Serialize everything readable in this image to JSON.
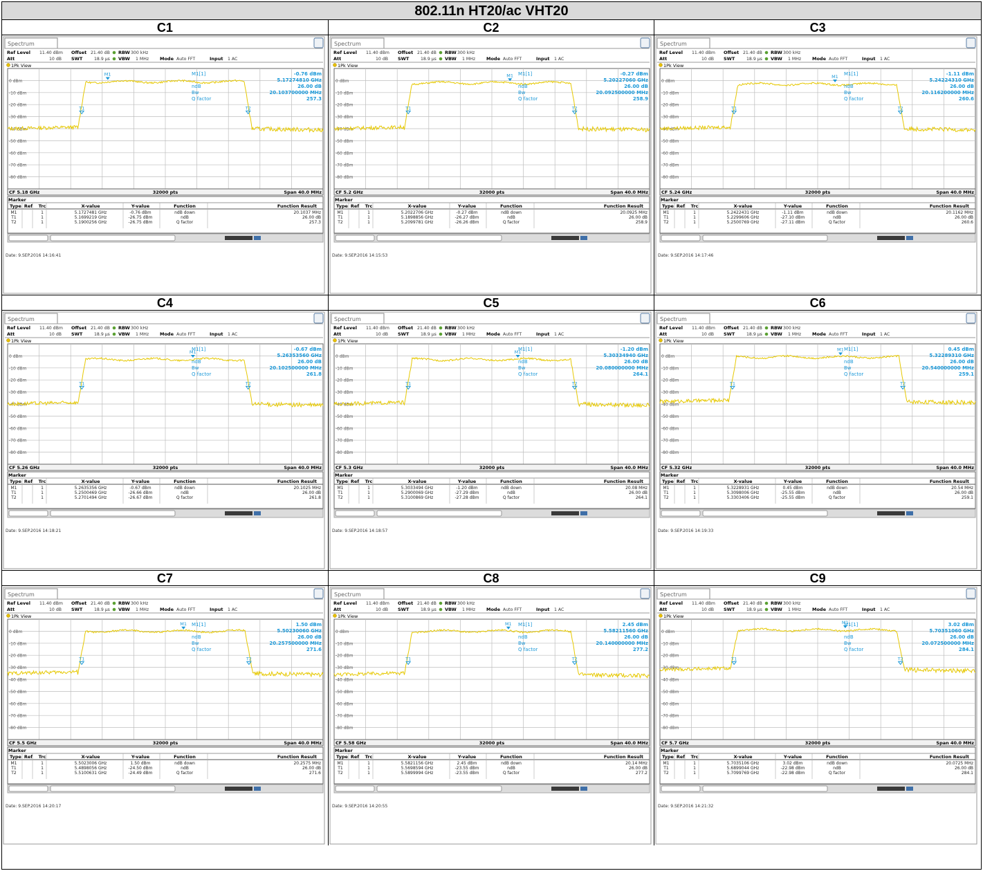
{
  "page_title": "802.11n HT20/ac VHT20",
  "colors": {
    "trace": "#e6c800",
    "marker": "#1a98d8",
    "grid": "#777777",
    "accent": "#5aa032"
  },
  "analyzer": {
    "tab_label": "Spectrum",
    "ref_level_label": "Ref Level",
    "ref_level": "11.40 dBm",
    "offset_label": "Offset",
    "offset": "21.40 dB",
    "rbw_label": "RBW",
    "rbw": "300 kHz",
    "att_label": "Att",
    "att": "10 dB",
    "swt_label": "SWT",
    "swt": "18.9 µs",
    "vbw_label": "VBW",
    "vbw": "1 MHz",
    "mode_label": "Mode",
    "mode": "Auto FFT",
    "input_label": "Input",
    "input": "1 AC",
    "view_label": "1Pk View",
    "pts": "32000 pts",
    "span": "Span 40.0 MHz",
    "marker_section": "Marker",
    "table_headers": [
      "Type",
      "Ref",
      "Trc",
      "X-value",
      "Y-value",
      "Function",
      "Function Result"
    ],
    "readout_labels": [
      "M1[1]",
      "ndB",
      "Bw",
      "Q factor"
    ],
    "y_tick_labels": [
      "0 dBm",
      "-10 dBm",
      "-20 dBm",
      "-30 dBm",
      "-40 dBm",
      "-50 dBm",
      "-60 dBm",
      "-70 dBm",
      "-80 dBm"
    ]
  },
  "chart_data": [
    {
      "name": "C1",
      "type": "line",
      "cf": "CF 5.18 GHz",
      "span_mhz": 40,
      "ylim": [
        -90,
        10
      ],
      "level": -1,
      "floor": -40,
      "edge_lo_mhz": -10.1,
      "edge_hi_mhz": 10.0,
      "m1_x_mhz": -7.3,
      "readout": [
        "-0.76 dBm",
        "5.17274810 GHz",
        "26.00 dB",
        "20.103700000 MHz",
        "257.3"
      ],
      "rows": [
        [
          "M1",
          "",
          "1",
          "5.1727481 GHz",
          "-0.76 dBm",
          "ndB down",
          "20.1037 MHz"
        ],
        [
          "T1",
          "",
          "1",
          "5.1699219 GHz",
          "-26.75 dBm",
          "ndB",
          "26.00 dB"
        ],
        [
          "T2",
          "",
          "1",
          "5.1900256 GHz",
          "-26.75 dBm",
          "Q factor",
          "257.3"
        ]
      ],
      "date": "Date: 9.SEP.2016  14:16:41"
    },
    {
      "name": "C2",
      "type": "line",
      "cf": "CF 5.2 GHz",
      "span_mhz": 40,
      "ylim": [
        -90,
        10
      ],
      "level": -2,
      "floor": -40,
      "edge_lo_mhz": -10.1,
      "edge_hi_mhz": 10.0,
      "m1_x_mhz": 2.3,
      "readout": [
        "-0.27 dBm",
        "5.20227060 GHz",
        "26.00 dB",
        "20.092500000 MHz",
        "258.9"
      ],
      "rows": [
        [
          "M1",
          "",
          "1",
          "5.2022706 GHz",
          "-0.27 dBm",
          "ndB down",
          "20.0925 MHz"
        ],
        [
          "T1",
          "",
          "1",
          "5.1898856 GHz",
          "-26.27 dBm",
          "ndB",
          "26.00 dB"
        ],
        [
          "T2",
          "",
          "1",
          "5.2099781 GHz",
          "-26.26 dBm",
          "Q factor",
          "258.9"
        ]
      ],
      "date": "Date: 9.SEP.2016  14:15:53"
    },
    {
      "name": "C3",
      "type": "line",
      "cf": "CF 5.24 GHz",
      "span_mhz": 40,
      "ylim": [
        -90,
        10
      ],
      "level": -3,
      "floor": -40,
      "edge_lo_mhz": -10.1,
      "edge_hi_mhz": 10.0,
      "m1_x_mhz": 2.2,
      "readout": [
        "-1.11 dBm",
        "5.24224310 GHz",
        "26.00 dB",
        "20.116200000 MHz",
        "260.6"
      ],
      "rows": [
        [
          "M1",
          "",
          "1",
          "5.2422431 GHz",
          "-1.11 dBm",
          "ndB down",
          "20.1162 MHz"
        ],
        [
          "T1",
          "",
          "1",
          "5.2299606 GHz",
          "-27.10 dBm",
          "ndB",
          "26.00 dB"
        ],
        [
          "T2",
          "",
          "1",
          "5.2500769 GHz",
          "-27.11 dBm",
          "Q factor",
          "260.6"
        ]
      ],
      "date": "Date: 9.SEP.2016  14:17:46"
    },
    {
      "name": "C4",
      "type": "line",
      "cf": "CF 5.26 GHz",
      "span_mhz": 40,
      "ylim": [
        -90,
        10
      ],
      "level": -3,
      "floor": -40,
      "edge_lo_mhz": -10.1,
      "edge_hi_mhz": 10.0,
      "m1_x_mhz": 3.5,
      "readout": [
        "-0.67 dBm",
        "5.26353560 GHz",
        "26.00 dB",
        "20.102500000 MHz",
        "261.8"
      ],
      "rows": [
        [
          "M1",
          "",
          "1",
          "5.2635356 GHz",
          "-0.67 dBm",
          "ndB down",
          "20.1025 MHz"
        ],
        [
          "T1",
          "",
          "1",
          "5.2500469 GHz",
          "-26.66 dBm",
          "ndB",
          "26.00 dB"
        ],
        [
          "T2",
          "",
          "1",
          "5.2701494 GHz",
          "-26.67 dBm",
          "Q factor",
          "261.8"
        ]
      ],
      "date": "Date: 9.SEP.2016  14:18:21"
    },
    {
      "name": "C5",
      "type": "line",
      "cf": "CF 5.3 GHz",
      "span_mhz": 40,
      "ylim": [
        -90,
        10
      ],
      "level": -3,
      "floor": -40,
      "edge_lo_mhz": -10.1,
      "edge_hi_mhz": 10.0,
      "m1_x_mhz": 3.3,
      "readout": [
        "-1.20 dBm",
        "5.30334940 GHz",
        "26.00 dB",
        "20.080000000 MHz",
        "264.1"
      ],
      "rows": [
        [
          "M1",
          "",
          "1",
          "5.3033494 GHz",
          "-1.20 dBm",
          "ndB down",
          "20.08 MHz"
        ],
        [
          "T1",
          "",
          "1",
          "5.2900069 GHz",
          "-27.29 dBm",
          "ndB",
          "26.00 dB"
        ],
        [
          "T2",
          "",
          "1",
          "5.3100869 GHz",
          "-27.28 dBm",
          "Q factor",
          "264.1"
        ]
      ],
      "date": "Date: 9.SEP.2016  14:18:57"
    },
    {
      "name": "C6",
      "type": "line",
      "cf": "CF 5.32 GHz",
      "span_mhz": 40,
      "ylim": [
        -90,
        10
      ],
      "level": -1,
      "floor": -38,
      "edge_lo_mhz": -10.3,
      "edge_hi_mhz": 10.3,
      "m1_x_mhz": 2.9,
      "readout": [
        "0.45 dBm",
        "5.32289310 GHz",
        "26.00 dB",
        "20.540000000 MHz",
        "259.1"
      ],
      "rows": [
        [
          "M1",
          "",
          "1",
          "5.3228931 GHz",
          "0.45 dBm",
          "ndB down",
          "20.54 MHz"
        ],
        [
          "T1",
          "",
          "1",
          "5.3098006 GHz",
          "-25.55 dBm",
          "ndB",
          "26.00 dB"
        ],
        [
          "T2",
          "",
          "1",
          "5.3303406 GHz",
          "-25.55 dBm",
          "Q factor",
          "259.1"
        ]
      ],
      "date": "Date: 9.SEP.2016  14:19:33"
    },
    {
      "name": "C7",
      "type": "line",
      "cf": "CF 5.5 GHz",
      "span_mhz": 40,
      "ylim": [
        -90,
        10
      ],
      "level": 0,
      "floor": -35,
      "edge_lo_mhz": -10.1,
      "edge_hi_mhz": 10.1,
      "m1_x_mhz": 2.3,
      "readout": [
        "1.50 dBm",
        "5.50230060 GHz",
        "26.00 dB",
        "20.257500000 MHz",
        "271.6"
      ],
      "rows": [
        [
          "M1",
          "",
          "1",
          "5.5023006 GHz",
          "1.50 dBm",
          "ndB down",
          "20.2575 MHz"
        ],
        [
          "T1",
          "",
          "1",
          "5.4898056 GHz",
          "-24.50 dBm",
          "ndB",
          "26.00 dB"
        ],
        [
          "T2",
          "",
          "1",
          "5.5100631 GHz",
          "-24.49 dBm",
          "Q factor",
          "271.6"
        ]
      ],
      "date": "Date: 9.SEP.2016  14:20:17"
    },
    {
      "name": "C8",
      "type": "line",
      "cf": "CF 5.58 GHz",
      "span_mhz": 40,
      "ylim": [
        -90,
        10
      ],
      "level": 0,
      "floor": -36,
      "edge_lo_mhz": -10.1,
      "edge_hi_mhz": 10.0,
      "m1_x_mhz": 2.1,
      "readout": [
        "2.45 dBm",
        "5.58211560 GHz",
        "26.00 dB",
        "20.140000000 MHz",
        "277.2"
      ],
      "rows": [
        [
          "M1",
          "",
          "1",
          "5.5821156 GHz",
          "2.45 dBm",
          "ndB down",
          "20.14 MHz"
        ],
        [
          "T1",
          "",
          "1",
          "5.5698594 GHz",
          "-23.55 dBm",
          "ndB",
          "26.00 dB"
        ],
        [
          "T2",
          "",
          "1",
          "5.5899994 GHz",
          "-23.55 dBm",
          "Q factor",
          "277.2"
        ]
      ],
      "date": "Date: 9.SEP.2016  14:20:55"
    },
    {
      "name": "C9",
      "type": "line",
      "cf": "CF 5.7 GHz",
      "span_mhz": 40,
      "ylim": [
        -90,
        10
      ],
      "level": 1,
      "floor": -32,
      "edge_lo_mhz": -10.1,
      "edge_hi_mhz": 10.0,
      "m1_x_mhz": 3.5,
      "readout": [
        "3.02 dBm",
        "5.70351060 GHz",
        "26.00 dB",
        "20.072500000 MHz",
        "284.1"
      ],
      "rows": [
        [
          "M1",
          "",
          "1",
          "5.7035106 GHz",
          "3.02 dBm",
          "ndB down",
          "20.0725 MHz"
        ],
        [
          "T1",
          "",
          "1",
          "5.6899044 GHz",
          "-22.98 dBm",
          "ndB",
          "26.00 dB"
        ],
        [
          "T2",
          "",
          "1",
          "5.7099769 GHz",
          "-22.98 dBm",
          "Q factor",
          "284.1"
        ]
      ],
      "date": "Date: 9.SEP.2016  14:21:32"
    }
  ]
}
